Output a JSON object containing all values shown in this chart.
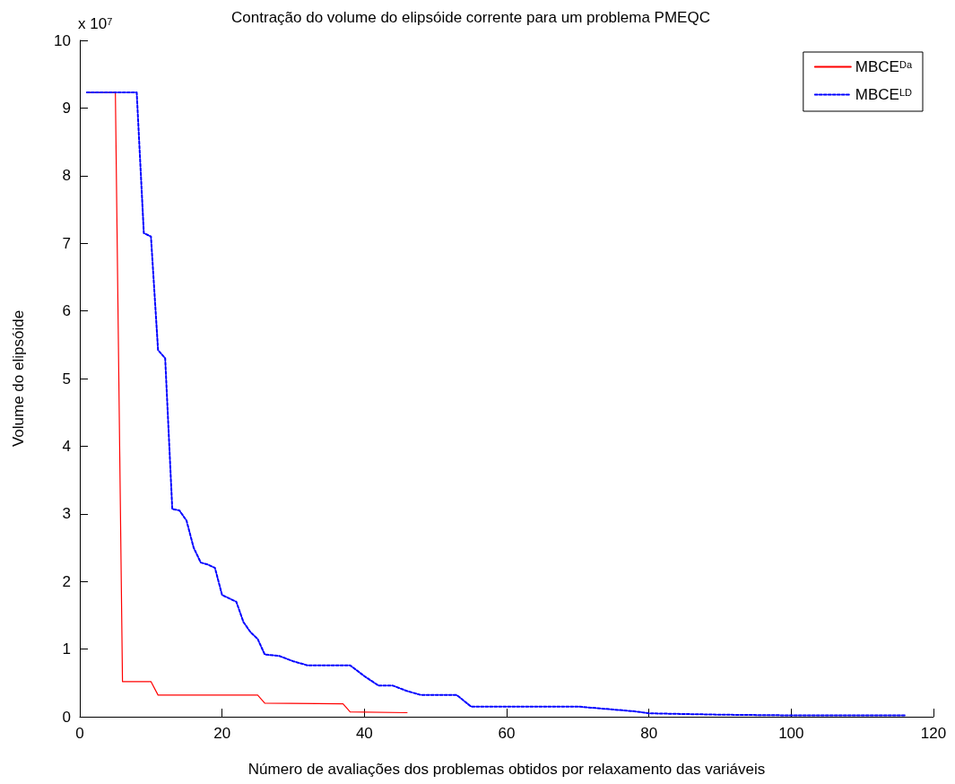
{
  "chart_data": {
    "type": "line",
    "title": "Contração do volume do elipsóide corrente para um problema PMEQC",
    "xlabel": "Número de avaliações dos problemas obtidos por relaxamento das variáveis",
    "ylabel": "Volume do elipsóide",
    "annotations": [
      "x 10$^{7}$"
    ],
    "xlim": [
      0,
      120
    ],
    "xticks": [
      0,
      20,
      40,
      60,
      80,
      100,
      120
    ],
    "ylim": [
      0,
      10
    ],
    "yticks": [
      0,
      1,
      2,
      3,
      4,
      5,
      6,
      7,
      8,
      9,
      10
    ],
    "grid": false,
    "legend": "top right",
    "marker": "none",
    "series": [
      {
        "name": "MBCE$^{Da}$",
        "color": "#ff0000",
        "line_style": "solid",
        "x": [
          1,
          5,
          6,
          10,
          11,
          25,
          26,
          37,
          38,
          46
        ],
        "values": [
          9.23,
          9.23,
          0.52,
          0.52,
          0.32,
          0.32,
          0.2,
          0.19,
          0.07,
          0.06
        ]
      },
      {
        "name": "MBCE$^{LD}$",
        "color": "#0000ff",
        "line_style": "dotted",
        "x": [
          1,
          8,
          9,
          10,
          11,
          12,
          13,
          14,
          15,
          16,
          17,
          18,
          19,
          20,
          21,
          22,
          23,
          24,
          25,
          26,
          28,
          30,
          32,
          38,
          40,
          42,
          44,
          46,
          48,
          53,
          55,
          70,
          78,
          80,
          90,
          100,
          116
        ],
        "values": [
          9.23,
          9.23,
          7.15,
          7.1,
          5.42,
          5.3,
          3.07,
          3.05,
          2.9,
          2.5,
          2.28,
          2.25,
          2.2,
          1.8,
          1.75,
          1.7,
          1.4,
          1.25,
          1.15,
          0.92,
          0.9,
          0.82,
          0.76,
          0.76,
          0.6,
          0.46,
          0.46,
          0.38,
          0.32,
          0.32,
          0.15,
          0.15,
          0.08,
          0.05,
          0.03,
          0.02,
          0.02
        ]
      }
    ]
  }
}
